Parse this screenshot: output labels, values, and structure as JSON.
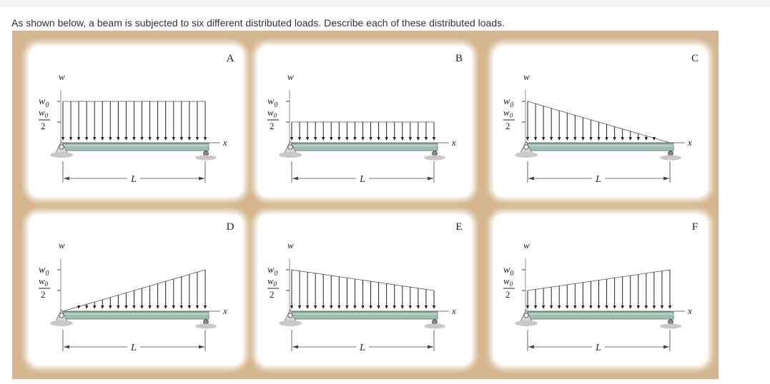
{
  "question": "As shown below, a beam is subjected to six different distributed loads. Describe each of these distributed loads.",
  "axis": {
    "load_label": "w",
    "x_label": "x",
    "length_label": "L",
    "w0_label": "w",
    "w0_sub": "0",
    "half_num_label": "w",
    "half_num_sub": "0",
    "half_den_label": "2"
  },
  "panels": [
    {
      "letter": "A",
      "load_start": 1.0,
      "load_end": 1.0
    },
    {
      "letter": "B",
      "load_start": 0.5,
      "load_end": 0.5
    },
    {
      "letter": "C",
      "load_start": 1.0,
      "load_end": 0.0
    },
    {
      "letter": "D",
      "load_start": 0.0,
      "load_end": 1.0
    },
    {
      "letter": "E",
      "load_start": 1.0,
      "load_end": 0.5
    },
    {
      "letter": "F",
      "load_start": 0.5,
      "load_end": 1.0
    }
  ],
  "colors": {
    "beam": "#9fbfb0",
    "beam_dark": "#6f8f82",
    "support": "#c9c9c9",
    "figure_bg": "#d4b68e",
    "arrow": "#222222"
  }
}
